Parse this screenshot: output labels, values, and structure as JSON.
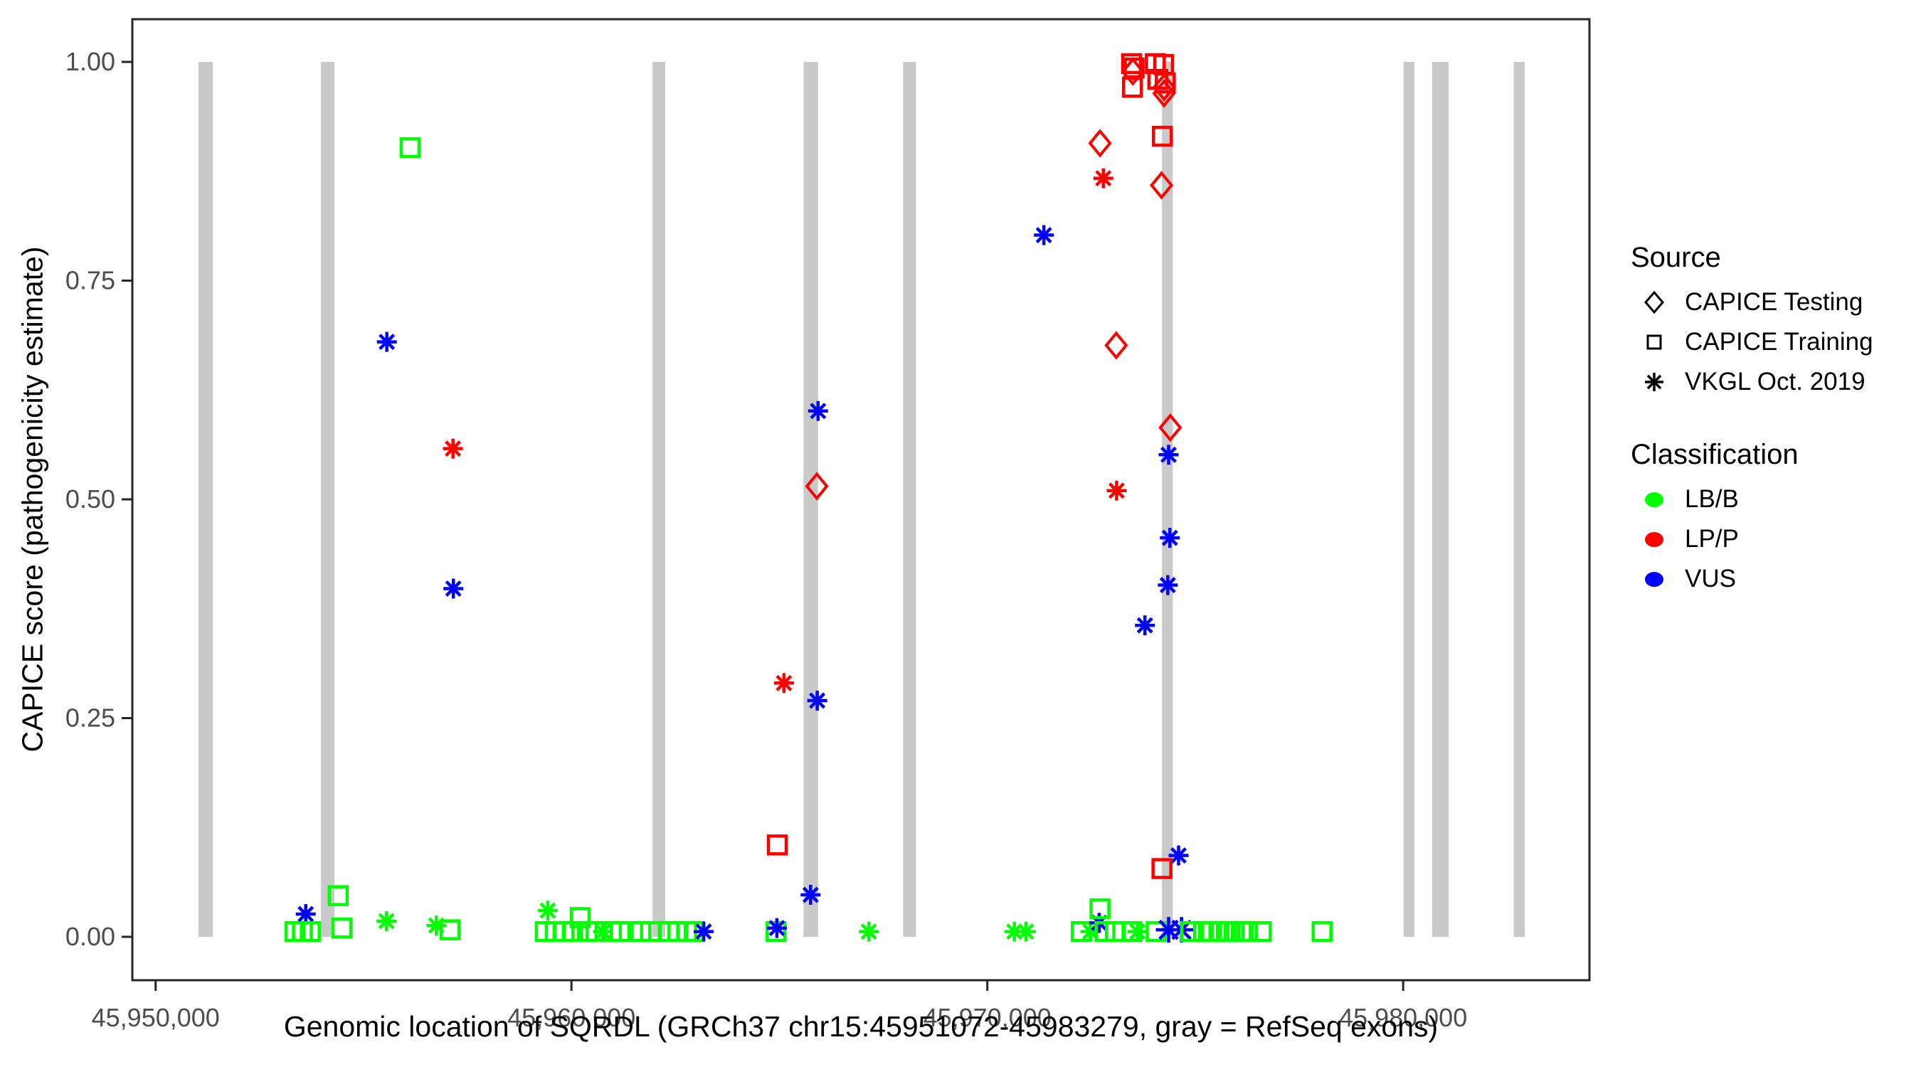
{
  "figure": {
    "y_axis": {
      "title": "CAPICE score (pathogenicity estimate)",
      "ticks": [
        {
          "label": "1.00",
          "value": 1.0
        },
        {
          "label": "0.75",
          "value": 0.75
        },
        {
          "label": "0.50",
          "value": 0.5
        },
        {
          "label": "0.25",
          "value": 0.25
        },
        {
          "label": "0.00",
          "value": 0.0
        }
      ]
    },
    "x_axis": {
      "title": "Genomic location of SQRDL (GRCh37 chr15:45951072-45983279, gray = RefSeq exons)",
      "ticks": [
        {
          "label": "45,950,000",
          "value": 45950000
        },
        {
          "label": "45,960,000",
          "value": 45960000
        },
        {
          "label": "45,970,000",
          "value": 45970000
        },
        {
          "label": "45,980,000",
          "value": 45980000
        }
      ]
    }
  },
  "legend": {
    "source": {
      "title": "Source",
      "items": [
        {
          "label": "CAPICE Testing",
          "shape": "diamond"
        },
        {
          "label": "CAPICE Training",
          "shape": "square"
        },
        {
          "label": "VKGL Oct. 2019",
          "shape": "asterisk"
        }
      ]
    },
    "classification": {
      "title": "Classification",
      "items": [
        {
          "label": "LB/B",
          "color": "#00FF00"
        },
        {
          "label": "LP/P",
          "color": "#FF0000"
        },
        {
          "label": "VUS",
          "color": "#0000FF"
        }
      ]
    }
  },
  "chart_data": {
    "type": "scatter",
    "title": "",
    "xlabel": "Genomic location of SQRDL (GRCh37 chr15:45951072-45983279, gray = RefSeq exons)",
    "ylabel": "CAPICE score (pathogenicity estimate)",
    "xlim": [
      45949440,
      45984480
    ],
    "ylim": [
      -0.0496,
      1.0488
    ],
    "grid": false,
    "legend_position": "right",
    "colors": {
      "LB/B": "#00FF00",
      "LP/P": "#FF0000",
      "VUS": "#0000FF"
    },
    "shape_by_source": {
      "CAPICE Testing": "diamond",
      "CAPICE Training": "square",
      "VKGL Oct. 2019": "asterisk"
    },
    "exon_color": "#C9C9C9",
    "panel_border_color": "#262626",
    "tick_label_color": "#4D4D4D",
    "exons": [
      {
        "start": 45951030,
        "end": 45951375
      },
      {
        "start": 45953975,
        "end": 45954300
      },
      {
        "start": 45961950,
        "end": 45962255
      },
      {
        "start": 45965580,
        "end": 45965930
      },
      {
        "start": 45967975,
        "end": 45968285
      },
      {
        "start": 45974200,
        "end": 45974460
      },
      {
        "start": 45980010,
        "end": 45980270
      },
      {
        "start": 45980700,
        "end": 45981095
      },
      {
        "start": 45982660,
        "end": 45982925
      }
    ],
    "points": [
      {
        "pos": 45953350,
        "score": 0.006,
        "source": "CAPICE Training",
        "classification": "LB/B"
      },
      {
        "pos": 45953530,
        "score": 0.006,
        "source": "CAPICE Training",
        "classification": "LB/B"
      },
      {
        "pos": 45953610,
        "score": 0.026,
        "source": "VKGL Oct. 2019",
        "classification": "VUS"
      },
      {
        "pos": 45953720,
        "score": 0.006,
        "source": "CAPICE Training",
        "classification": "LB/B"
      },
      {
        "pos": 45954390,
        "score": 0.047,
        "source": "CAPICE Training",
        "classification": "LB/B"
      },
      {
        "pos": 45954480,
        "score": 0.01,
        "source": "CAPICE Training",
        "classification": "LB/B"
      },
      {
        "pos": 45955560,
        "score": 0.68,
        "source": "VKGL Oct. 2019",
        "classification": "VUS"
      },
      {
        "pos": 45955550,
        "score": 0.018,
        "source": "VKGL Oct. 2019",
        "classification": "LB/B"
      },
      {
        "pos": 45956120,
        "score": 0.902,
        "source": "CAPICE Training",
        "classification": "LB/B"
      },
      {
        "pos": 45956750,
        "score": 0.013,
        "source": "VKGL Oct. 2019",
        "classification": "LB/B"
      },
      {
        "pos": 45957080,
        "score": 0.008,
        "source": "CAPICE Training",
        "classification": "LB/B"
      },
      {
        "pos": 45957150,
        "score": 0.558,
        "source": "VKGL Oct. 2019",
        "classification": "LP/P"
      },
      {
        "pos": 45957160,
        "score": 0.398,
        "source": "VKGL Oct. 2019",
        "classification": "VUS"
      },
      {
        "pos": 45959370,
        "score": 0.006,
        "source": "CAPICE Training",
        "classification": "LB/B"
      },
      {
        "pos": 45959430,
        "score": 0.03,
        "source": "VKGL Oct. 2019",
        "classification": "LB/B"
      },
      {
        "pos": 45959610,
        "score": 0.006,
        "source": "CAPICE Training",
        "classification": "LB/B"
      },
      {
        "pos": 45959820,
        "score": 0.006,
        "source": "CAPICE Training",
        "classification": "LB/B"
      },
      {
        "pos": 45960020,
        "score": 0.006,
        "source": "CAPICE Training",
        "classification": "LB/B"
      },
      {
        "pos": 45960210,
        "score": 0.022,
        "source": "CAPICE Training",
        "classification": "LB/B"
      },
      {
        "pos": 45960380,
        "score": 0.006,
        "source": "CAPICE Training",
        "classification": "LB/B"
      },
      {
        "pos": 45960590,
        "score": 0.006,
        "source": "CAPICE Training",
        "classification": "LB/B"
      },
      {
        "pos": 45960760,
        "score": 0.006,
        "source": "VKGL Oct. 2019",
        "classification": "LB/B"
      },
      {
        "pos": 45960960,
        "score": 0.006,
        "source": "CAPICE Training",
        "classification": "LB/B"
      },
      {
        "pos": 45961170,
        "score": 0.006,
        "source": "CAPICE Training",
        "classification": "LB/B"
      },
      {
        "pos": 45961670,
        "score": 0.006,
        "source": "CAPICE Training",
        "classification": "LB/B"
      },
      {
        "pos": 45961900,
        "score": 0.006,
        "source": "CAPICE Training",
        "classification": "LB/B"
      },
      {
        "pos": 45962350,
        "score": 0.006,
        "source": "CAPICE Training",
        "classification": "LB/B"
      },
      {
        "pos": 45962560,
        "score": 0.006,
        "source": "CAPICE Training",
        "classification": "LB/B"
      },
      {
        "pos": 45962770,
        "score": 0.006,
        "source": "CAPICE Training",
        "classification": "LB/B"
      },
      {
        "pos": 45962950,
        "score": 0.006,
        "source": "CAPICE Training",
        "classification": "LB/B"
      },
      {
        "pos": 45963180,
        "score": 0.006,
        "source": "VKGL Oct. 2019",
        "classification": "VUS"
      },
      {
        "pos": 45964920,
        "score": 0.006,
        "source": "CAPICE Training",
        "classification": "LB/B"
      },
      {
        "pos": 45964940,
        "score": 0.01,
        "source": "VKGL Oct. 2019",
        "classification": "VUS"
      },
      {
        "pos": 45964950,
        "score": 0.105,
        "source": "CAPICE Training",
        "classification": "LP/P"
      },
      {
        "pos": 45965110,
        "score": 0.29,
        "source": "VKGL Oct. 2019",
        "classification": "LP/P"
      },
      {
        "pos": 45965750,
        "score": 0.048,
        "source": "VKGL Oct. 2019",
        "classification": "VUS"
      },
      {
        "pos": 45965900,
        "score": 0.515,
        "source": "CAPICE Testing",
        "classification": "LP/P"
      },
      {
        "pos": 45965930,
        "score": 0.601,
        "source": "VKGL Oct. 2019",
        "classification": "VUS"
      },
      {
        "pos": 45965910,
        "score": 0.27,
        "source": "VKGL Oct. 2019",
        "classification": "VUS"
      },
      {
        "pos": 45967150,
        "score": 0.006,
        "source": "VKGL Oct. 2019",
        "classification": "LB/B"
      },
      {
        "pos": 45970650,
        "score": 0.006,
        "source": "VKGL Oct. 2019",
        "classification": "LB/B"
      },
      {
        "pos": 45970930,
        "score": 0.006,
        "source": "VKGL Oct. 2019",
        "classification": "LB/B"
      },
      {
        "pos": 45971360,
        "score": 0.802,
        "source": "VKGL Oct. 2019",
        "classification": "VUS"
      },
      {
        "pos": 45972260,
        "score": 0.006,
        "source": "CAPICE Training",
        "classification": "LB/B"
      },
      {
        "pos": 45972480,
        "score": 0.006,
        "source": "VKGL Oct. 2019",
        "classification": "LB/B"
      },
      {
        "pos": 45972690,
        "score": 0.016,
        "source": "VKGL Oct. 2019",
        "classification": "VUS"
      },
      {
        "pos": 45972710,
        "score": 0.032,
        "source": "CAPICE Training",
        "classification": "LB/B"
      },
      {
        "pos": 45972830,
        "score": 0.006,
        "source": "CAPICE Training",
        "classification": "LB/B"
      },
      {
        "pos": 45973080,
        "score": 0.006,
        "source": "CAPICE Training",
        "classification": "LB/B"
      },
      {
        "pos": 45973480,
        "score": 0.006,
        "source": "CAPICE Training",
        "classification": "LB/B"
      },
      {
        "pos": 45973610,
        "score": 0.006,
        "source": "VKGL Oct. 2019",
        "classification": "LB/B"
      },
      {
        "pos": 45974060,
        "score": 0.006,
        "source": "CAPICE Training",
        "classification": "LB/B"
      },
      {
        "pos": 45974360,
        "score": 0.008,
        "source": "VKGL Oct. 2019",
        "classification": "VUS",
        "big": true
      },
      {
        "pos": 45974670,
        "score": 0.008,
        "source": "VKGL Oct. 2019",
        "classification": "VUS",
        "big": true
      },
      {
        "pos": 45974890,
        "score": 0.006,
        "source": "CAPICE Training",
        "classification": "LB/B"
      },
      {
        "pos": 45975200,
        "score": 0.006,
        "source": "CAPICE Training",
        "classification": "LB/B"
      },
      {
        "pos": 45975390,
        "score": 0.006,
        "source": "CAPICE Training",
        "classification": "LB/B"
      },
      {
        "pos": 45975570,
        "score": 0.006,
        "source": "CAPICE Training",
        "classification": "LB/B"
      },
      {
        "pos": 45975750,
        "score": 0.006,
        "source": "CAPICE Training",
        "classification": "LB/B"
      },
      {
        "pos": 45975930,
        "score": 0.006,
        "source": "CAPICE Training",
        "classification": "LB/B"
      },
      {
        "pos": 45976110,
        "score": 0.006,
        "source": "CAPICE Training",
        "classification": "LB/B"
      },
      {
        "pos": 45976260,
        "score": 0.006,
        "source": "CAPICE Training",
        "classification": "LB/B"
      },
      {
        "pos": 45976590,
        "score": 0.006,
        "source": "CAPICE Training",
        "classification": "LB/B"
      },
      {
        "pos": 45978050,
        "score": 0.006,
        "source": "CAPICE Training",
        "classification": "LB/B"
      },
      {
        "pos": 45972710,
        "score": 0.907,
        "source": "CAPICE Testing",
        "classification": "LP/P"
      },
      {
        "pos": 45972790,
        "score": 0.867,
        "source": "VKGL Oct. 2019",
        "classification": "LP/P"
      },
      {
        "pos": 45973100,
        "score": 0.676,
        "source": "CAPICE Testing",
        "classification": "LP/P"
      },
      {
        "pos": 45973110,
        "score": 0.51,
        "source": "VKGL Oct. 2019",
        "classification": "LP/P"
      },
      {
        "pos": 45973790,
        "score": 0.356,
        "source": "VKGL Oct. 2019",
        "classification": "VUS"
      },
      {
        "pos": 45974210,
        "score": 0.915,
        "source": "CAPICE Training",
        "classification": "LP/P"
      },
      {
        "pos": 45974190,
        "score": 0.859,
        "source": "CAPICE Testing",
        "classification": "LP/P"
      },
      {
        "pos": 45974400,
        "score": 0.582,
        "source": "CAPICE Testing",
        "classification": "LP/P"
      },
      {
        "pos": 45974360,
        "score": 0.551,
        "source": "VKGL Oct. 2019",
        "classification": "VUS"
      },
      {
        "pos": 45974390,
        "score": 0.456,
        "source": "VKGL Oct. 2019",
        "classification": "VUS"
      },
      {
        "pos": 45974340,
        "score": 0.402,
        "source": "VKGL Oct. 2019",
        "classification": "VUS"
      },
      {
        "pos": 45974600,
        "score": 0.093,
        "source": "VKGL Oct. 2019",
        "classification": "VUS"
      },
      {
        "pos": 45974200,
        "score": 0.078,
        "source": "CAPICE Training",
        "classification": "LP/P"
      },
      {
        "pos": 45973470,
        "score": 0.998,
        "source": "CAPICE Training",
        "classification": "LP/P"
      },
      {
        "pos": 45973530,
        "score": 0.993,
        "source": "CAPICE Training",
        "classification": "LP/P"
      },
      {
        "pos": 45973500,
        "score": 0.989,
        "source": "CAPICE Testing",
        "classification": "LP/P"
      },
      {
        "pos": 45973490,
        "score": 0.971,
        "source": "CAPICE Training",
        "classification": "LP/P"
      },
      {
        "pos": 45974040,
        "score": 0.998,
        "source": "CAPICE Training",
        "classification": "LP/P"
      },
      {
        "pos": 45974240,
        "score": 0.997,
        "source": "CAPICE Training",
        "classification": "LP/P"
      },
      {
        "pos": 45974100,
        "score": 0.98,
        "source": "CAPICE Training",
        "classification": "LP/P"
      },
      {
        "pos": 45974280,
        "score": 0.976,
        "source": "CAPICE Training",
        "classification": "LP/P"
      },
      {
        "pos": 45974250,
        "score": 0.971,
        "source": "CAPICE Testing",
        "classification": "LP/P"
      },
      {
        "pos": 45974250,
        "score": 0.964,
        "source": "CAPICE Testing",
        "classification": "LP/P"
      }
    ]
  }
}
